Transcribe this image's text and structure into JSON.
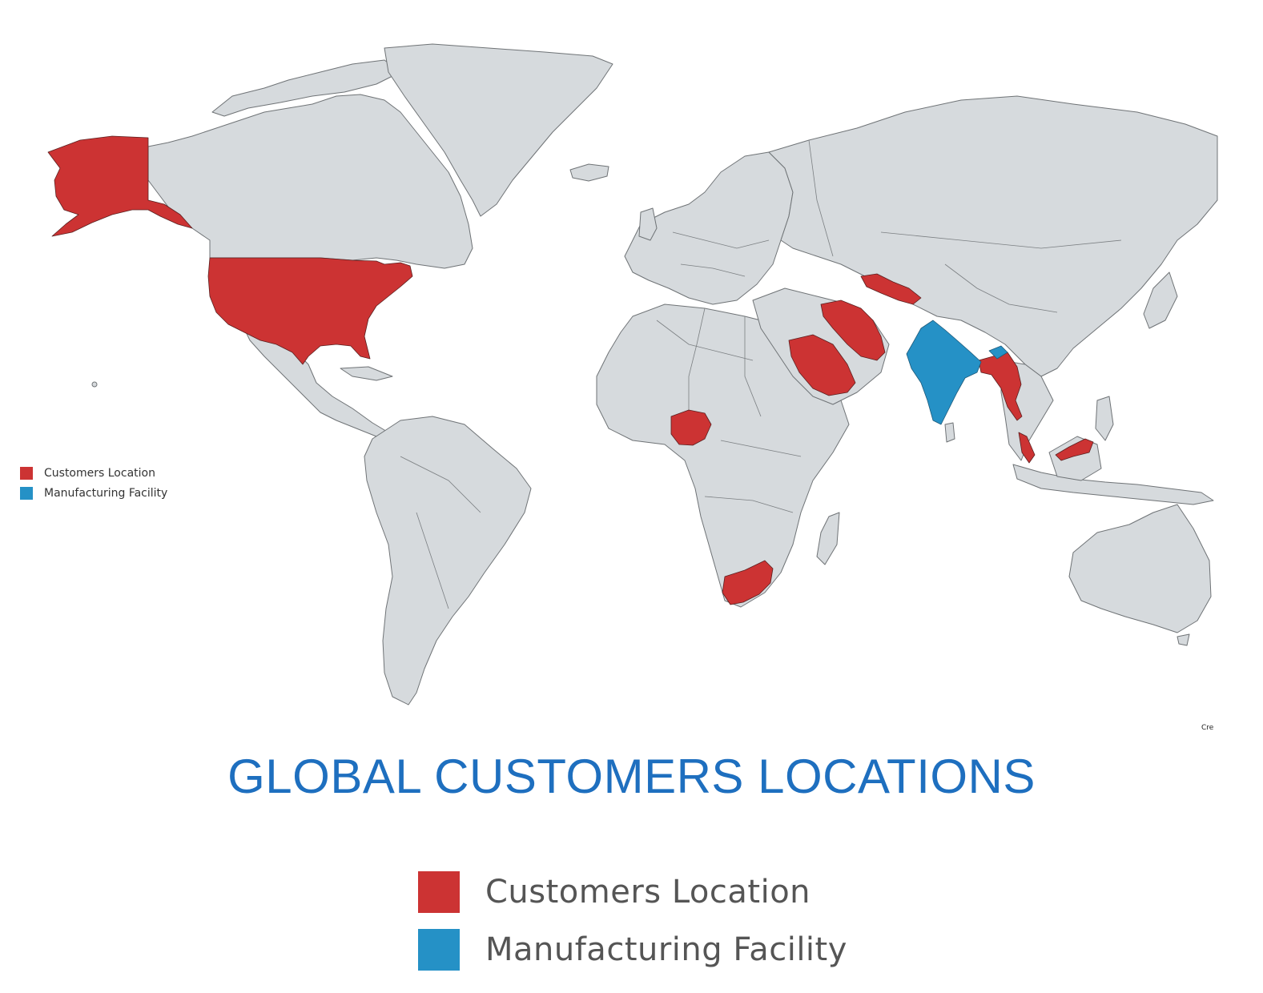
{
  "title": "GLOBAL CUSTOMERS LOCATIONS",
  "credit": "Cre",
  "colors": {
    "customers": "#cc3333",
    "manufacturing": "#2591c6",
    "land": "#d6dadd",
    "title": "#1e6fbf"
  },
  "legend": {
    "customers": "Customers Location",
    "manufacturing": "Manufacturing Facility"
  },
  "highlighted_regions": {
    "customers": [
      "Alaska",
      "United States",
      "Nigeria",
      "South Africa",
      "Saudi Arabia",
      "Iran",
      "Uzbekistan",
      "Myanmar",
      "Malaysia"
    ],
    "manufacturing": [
      "India"
    ]
  }
}
